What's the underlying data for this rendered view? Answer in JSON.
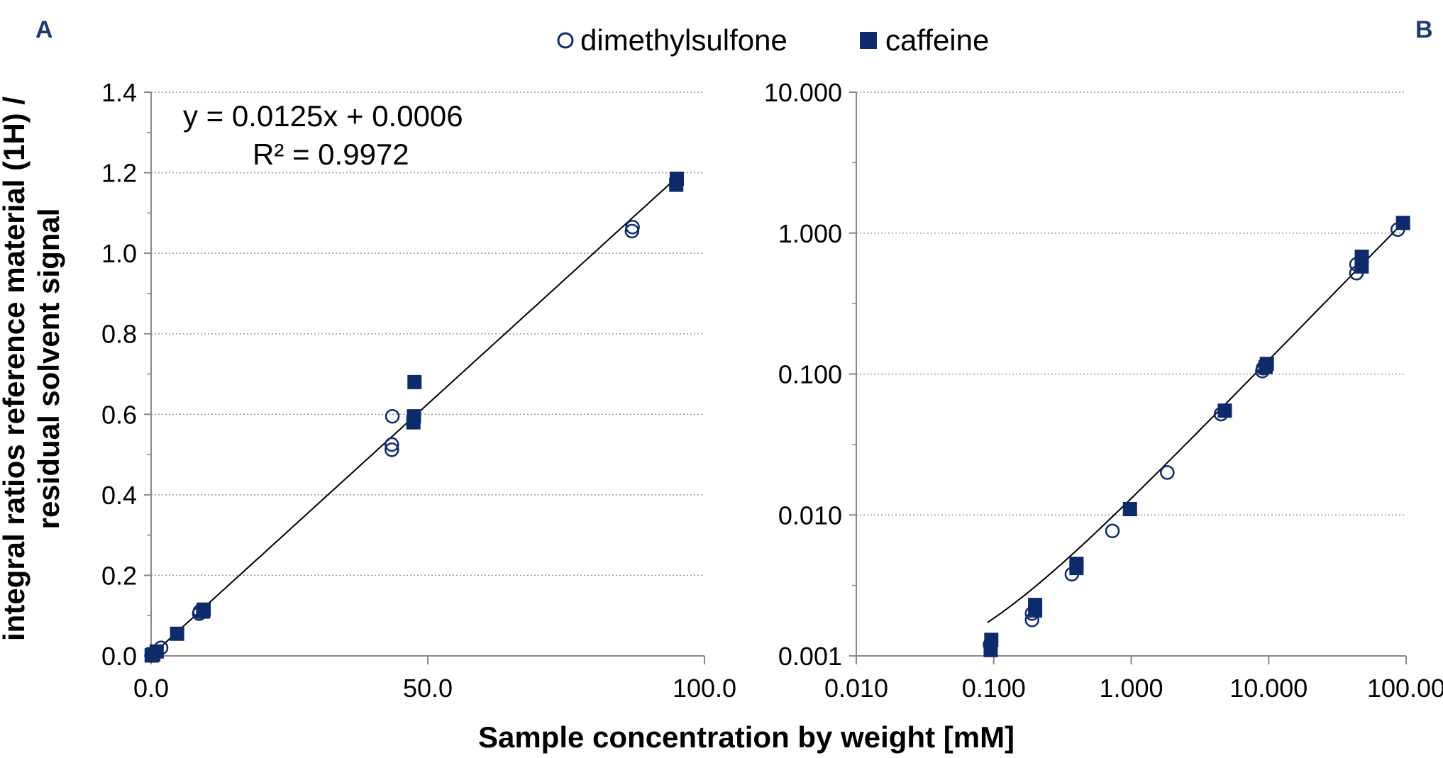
{
  "colors": {
    "marker": "#0d2a6b",
    "grid": "#9a9a9a",
    "axis": "#888888",
    "fit": "#000000"
  },
  "legend": {
    "items": [
      {
        "name": "dimethylsulfone",
        "marker": "open-circle"
      },
      {
        "name": "caffeine",
        "marker": "filled-square"
      }
    ],
    "placement": "top-center"
  },
  "shared": {
    "xlabel": "Sample concentration by weight [mM]",
    "ylabel_line1": "integral ratios reference material (1H) /",
    "ylabel_line2": "residual solvent signal"
  },
  "chart_data": [
    {
      "panel": "A",
      "type": "scatter",
      "xscale": "linear",
      "yscale": "linear",
      "xlim": [
        0,
        100
      ],
      "ylim": [
        0,
        1.4
      ],
      "x_ticks": [
        "0.0",
        "50.0",
        "100.0"
      ],
      "y_ticks": [
        "0.0",
        "0.2",
        "0.4",
        "0.6",
        "0.8",
        "1.0",
        "1.2",
        "1.4"
      ],
      "grid": "horizontal",
      "annotation": {
        "line1": "y = 0.0125x + 0.0006",
        "line2": "R² = 0.9972"
      },
      "fit": {
        "type": "linear",
        "slope": 0.0125,
        "intercept": 0.0006,
        "xrange": [
          0,
          95
        ]
      },
      "series": [
        {
          "name": "dimethylsulfone",
          "marker": "open-circle",
          "points": [
            [
              0.1,
              0.001
            ],
            [
              0.2,
              0.002
            ],
            [
              0.4,
              0.004
            ],
            [
              0.8,
              0.008
            ],
            [
              1.8,
              0.02
            ],
            [
              8.7,
              0.105
            ],
            [
              8.8,
              0.11
            ],
            [
              43.5,
              0.512
            ],
            [
              43.5,
              0.525
            ],
            [
              43.6,
              0.595
            ],
            [
              86.9,
              1.055
            ],
            [
              87.0,
              1.065
            ]
          ]
        },
        {
          "name": "caffeine",
          "marker": "filled-square",
          "points": [
            [
              0.1,
              0.001
            ],
            [
              0.2,
              0.002
            ],
            [
              0.4,
              0.004
            ],
            [
              1.0,
              0.011
            ],
            [
              4.7,
              0.055
            ],
            [
              9.4,
              0.11
            ],
            [
              9.5,
              0.115
            ],
            [
              47.4,
              0.58
            ],
            [
              47.5,
              0.595
            ],
            [
              47.6,
              0.68
            ],
            [
              94.9,
              1.17
            ],
            [
              95.0,
              1.185
            ]
          ]
        }
      ]
    },
    {
      "panel": "B",
      "type": "scatter",
      "xscale": "log",
      "yscale": "log",
      "xlim": [
        0.01,
        100
      ],
      "ylim": [
        0.001,
        10
      ],
      "x_ticks": [
        "0.010",
        "0.100",
        "1.000",
        "10.000",
        "100.00"
      ],
      "y_ticks": [
        "0.001",
        "0.010",
        "0.100",
        "1.000",
        "10.000"
      ],
      "grid": "horizontal",
      "fit": {
        "type": "linear",
        "slope": 0.0125,
        "intercept": 0.0006,
        "xrange": [
          0.09,
          95
        ]
      },
      "series": [
        {
          "name": "dimethylsulfone",
          "marker": "open-circle",
          "points": [
            [
              0.094,
              0.0012
            ],
            [
              0.19,
              0.0018
            ],
            [
              0.19,
              0.002
            ],
            [
              0.37,
              0.0038
            ],
            [
              0.73,
              0.0077
            ],
            [
              1.83,
              0.02
            ],
            [
              4.5,
              0.052
            ],
            [
              9.0,
              0.105
            ],
            [
              9.1,
              0.11
            ],
            [
              43.5,
              0.52
            ],
            [
              43.6,
              0.6
            ],
            [
              87.0,
              1.06
            ]
          ]
        },
        {
          "name": "caffeine",
          "marker": "filled-square",
          "points": [
            [
              0.095,
              0.0011
            ],
            [
              0.096,
              0.0013
            ],
            [
              0.2,
              0.0021
            ],
            [
              0.2,
              0.0023
            ],
            [
              0.4,
              0.0042
            ],
            [
              0.4,
              0.0045
            ],
            [
              0.98,
              0.011
            ],
            [
              4.8,
              0.055
            ],
            [
              9.5,
              0.112
            ],
            [
              9.7,
              0.118
            ],
            [
              47.5,
              0.58
            ],
            [
              47.6,
              0.68
            ],
            [
              95.0,
              1.18
            ]
          ]
        }
      ]
    }
  ]
}
